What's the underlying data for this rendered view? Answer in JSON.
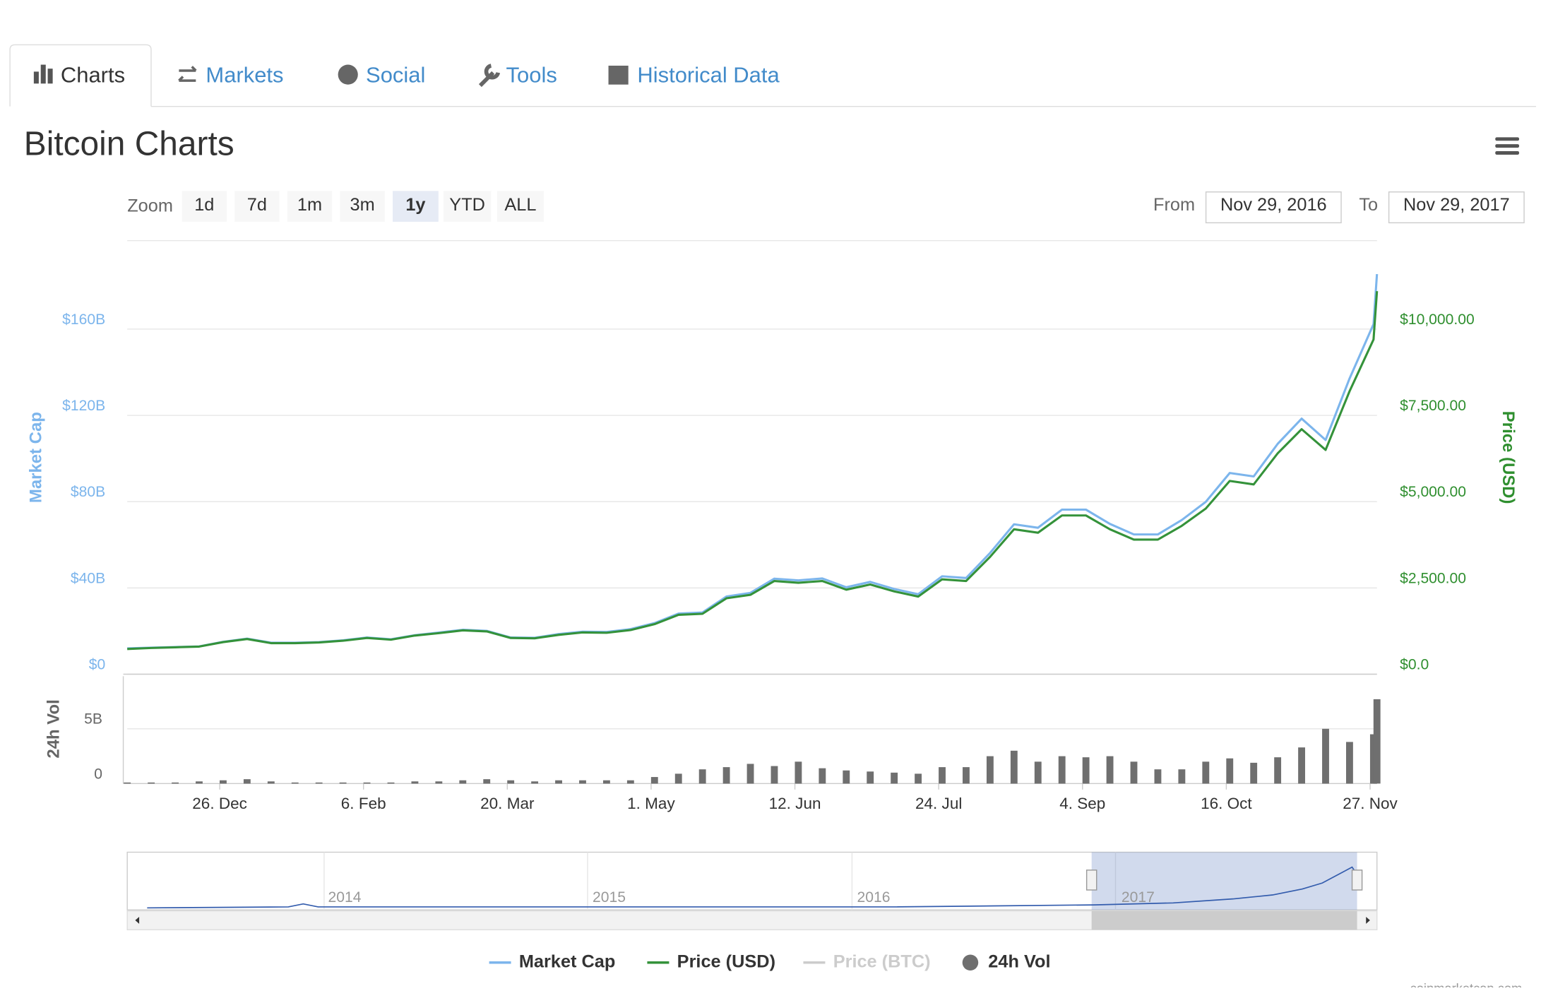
{
  "tabs": [
    "Charts",
    "Markets",
    "Social",
    "Tools",
    "Historical Data"
  ],
  "title": "Bitcoin Charts",
  "zoom": {
    "label": "Zoom",
    "buttons": [
      "1d",
      "7d",
      "1m",
      "3m",
      "1y",
      "YTD",
      "ALL"
    ],
    "selected": "1y"
  },
  "range": {
    "from_label": "From",
    "from": "Nov 29, 2016",
    "to_label": "To",
    "to": "Nov 29, 2017"
  },
  "navigator": {
    "labels": [
      "2014",
      "2015",
      "2016",
      "2017"
    ]
  },
  "credit": "coinmarketcap.com",
  "chart_data": [
    {
      "type": "line",
      "ylabel": "Market Cap",
      "y2label": "Price (USD)",
      "x": [
        "2016-11-29",
        "2016-12-06",
        "2016-12-13",
        "2016-12-20",
        "2016-12-27",
        "2017-01-03",
        "2017-01-10",
        "2017-01-17",
        "2017-01-24",
        "2017-01-31",
        "2017-02-07",
        "2017-02-14",
        "2017-02-21",
        "2017-02-28",
        "2017-03-07",
        "2017-03-14",
        "2017-03-21",
        "2017-03-28",
        "2017-04-04",
        "2017-04-11",
        "2017-04-18",
        "2017-04-25",
        "2017-05-02",
        "2017-05-09",
        "2017-05-16",
        "2017-05-23",
        "2017-05-30",
        "2017-06-06",
        "2017-06-13",
        "2017-06-20",
        "2017-06-27",
        "2017-07-04",
        "2017-07-11",
        "2017-07-18",
        "2017-07-25",
        "2017-08-01",
        "2017-08-08",
        "2017-08-15",
        "2017-08-22",
        "2017-08-29",
        "2017-09-05",
        "2017-09-12",
        "2017-09-19",
        "2017-09-26",
        "2017-10-03",
        "2017-10-10",
        "2017-10-17",
        "2017-10-24",
        "2017-10-31",
        "2017-11-07",
        "2017-11-14",
        "2017-11-21",
        "2017-11-28",
        "2017-11-29"
      ],
      "xlim": [
        "2016-11-29",
        "2017-11-29"
      ],
      "series": [
        {
          "name": "Market Cap",
          "color": "#7cb5ec",
          "axis": "y",
          "values": [
            12.0,
            12.3,
            12.6,
            12.9,
            15.0,
            16.5,
            14.6,
            14.6,
            14.9,
            15.7,
            17.0,
            16.2,
            18.1,
            19.3,
            20.6,
            20.1,
            17.0,
            16.9,
            18.6,
            19.7,
            19.6,
            20.9,
            23.7,
            28.1,
            28.6,
            36.0,
            37.7,
            44.3,
            43.5,
            44.4,
            40.3,
            42.8,
            39.5,
            37.1,
            45.4,
            44.6,
            56.2,
            69.5,
            67.9,
            76.3,
            76.3,
            69.7,
            64.8,
            64.8,
            71.5,
            79.9,
            93.3,
            91.7,
            106.8,
            118.5,
            108.6,
            137.1,
            162.3,
            185.5
          ]
        },
        {
          "name": "Price (USD)",
          "color": "#34923a",
          "axis": "y2",
          "values": [
            730,
            760,
            780,
            800,
            930,
            1020,
            900,
            900,
            920,
            970,
            1050,
            1000,
            1120,
            1190,
            1270,
            1240,
            1050,
            1040,
            1140,
            1210,
            1200,
            1280,
            1450,
            1720,
            1750,
            2200,
            2300,
            2700,
            2650,
            2700,
            2450,
            2600,
            2400,
            2250,
            2750,
            2700,
            3400,
            4200,
            4100,
            4600,
            4600,
            4200,
            3900,
            3900,
            4300,
            4800,
            5600,
            5500,
            6400,
            7100,
            6500,
            8200,
            9700,
            11100
          ]
        }
      ],
      "hidden_series": [
        {
          "name": "Price (BTC)",
          "color": "#cccccc"
        }
      ],
      "ylim": [
        0,
        201
      ],
      "yticks": [
        {
          "value": 0,
          "label": "$0"
        },
        {
          "value": 40,
          "label": "$40B"
        },
        {
          "value": 80,
          "label": "$80B"
        },
        {
          "value": 120,
          "label": "$120B"
        },
        {
          "value": 160,
          "label": "$160B"
        }
      ],
      "y2lim": [
        0,
        12562.5
      ],
      "y2ticks": [
        {
          "value": 0,
          "label": "$0.0"
        },
        {
          "value": 2500,
          "label": "$2,500.00"
        },
        {
          "value": 5000,
          "label": "$5,000.00"
        },
        {
          "value": 7500,
          "label": "$7,500.00"
        },
        {
          "value": 10000,
          "label": "$10,000.00"
        }
      ],
      "grid": true
    },
    {
      "type": "bar",
      "ylabel": "24h Vol",
      "x": [
        "2016-11-29",
        "2016-12-06",
        "2016-12-13",
        "2016-12-20",
        "2016-12-27",
        "2017-01-03",
        "2017-01-10",
        "2017-01-17",
        "2017-01-24",
        "2017-01-31",
        "2017-02-07",
        "2017-02-14",
        "2017-02-21",
        "2017-02-28",
        "2017-03-07",
        "2017-03-14",
        "2017-03-21",
        "2017-03-28",
        "2017-04-04",
        "2017-04-11",
        "2017-04-18",
        "2017-04-25",
        "2017-05-02",
        "2017-05-09",
        "2017-05-16",
        "2017-05-23",
        "2017-05-30",
        "2017-06-06",
        "2017-06-13",
        "2017-06-20",
        "2017-06-27",
        "2017-07-04",
        "2017-07-11",
        "2017-07-18",
        "2017-07-25",
        "2017-08-01",
        "2017-08-08",
        "2017-08-15",
        "2017-08-22",
        "2017-08-29",
        "2017-09-05",
        "2017-09-12",
        "2017-09-19",
        "2017-09-26",
        "2017-10-03",
        "2017-10-10",
        "2017-10-17",
        "2017-10-24",
        "2017-10-31",
        "2017-11-07",
        "2017-11-14",
        "2017-11-21",
        "2017-11-28",
        "2017-11-29"
      ],
      "xlim": [
        "2016-11-29",
        "2017-11-29"
      ],
      "xticks": [
        {
          "value": "2016-12-26",
          "label": "26. Dec"
        },
        {
          "value": "2017-02-06",
          "label": "6. Feb"
        },
        {
          "value": "2017-03-20",
          "label": "20. Mar"
        },
        {
          "value": "2017-05-01",
          "label": "1. May"
        },
        {
          "value": "2017-06-12",
          "label": "12. Jun"
        },
        {
          "value": "2017-07-24",
          "label": "24. Jul"
        },
        {
          "value": "2017-09-04",
          "label": "4. Sep"
        },
        {
          "value": "2017-10-16",
          "label": "16. Oct"
        },
        {
          "value": "2017-11-27",
          "label": "27. Nov"
        }
      ],
      "series": [
        {
          "name": "24h Vol",
          "color": "#6f6f6f",
          "values": [
            0.1,
            0.1,
            0.1,
            0.2,
            0.3,
            0.4,
            0.2,
            0.1,
            0.1,
            0.1,
            0.1,
            0.1,
            0.2,
            0.2,
            0.3,
            0.4,
            0.3,
            0.2,
            0.3,
            0.3,
            0.3,
            0.3,
            0.6,
            0.9,
            1.3,
            1.5,
            1.8,
            1.6,
            2.0,
            1.4,
            1.2,
            1.1,
            1.0,
            0.9,
            1.5,
            1.5,
            2.5,
            3.0,
            2.0,
            2.5,
            2.4,
            2.5,
            2.0,
            1.3,
            1.3,
            2.0,
            2.3,
            1.9,
            2.4,
            3.3,
            5.0,
            3.8,
            4.5,
            7.7
          ]
        }
      ],
      "ylim": [
        0,
        9.8
      ],
      "yticks": [
        0,
        {
          "value": 5,
          "label": "5B"
        }
      ],
      "grid": true
    }
  ]
}
